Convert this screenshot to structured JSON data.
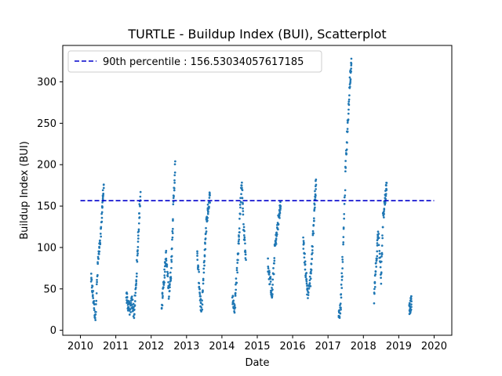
{
  "chart_data": {
    "type": "scatter",
    "title": "TURTLE - Buildup Index (BUI), Scatterplot",
    "xlabel": "Date",
    "ylabel": "Buildup Index (BUI)",
    "xlim": [
      2009.5,
      2020.5
    ],
    "ylim": [
      -6,
      344
    ],
    "x_ticks": [
      "2010",
      "2011",
      "2012",
      "2013",
      "2014",
      "2015",
      "2016",
      "2017",
      "2018",
      "2019",
      "2020"
    ],
    "y_ticks": [
      "0",
      "50",
      "100",
      "150",
      "200",
      "250",
      "300"
    ],
    "grid": false,
    "point_color": "#1f77b4",
    "reference_line": {
      "label": "90th percentile : 156.53034057617185",
      "value": 156.53034057617185,
      "x_start": 2010.0,
      "x_end": 2020.0,
      "color": "#0000cc",
      "style": "dashed"
    },
    "legend": {
      "placement": "top-left",
      "entries": [
        "90th percentile : 156.53034057617185"
      ]
    },
    "seasons": [
      {
        "points": [
          [
            2010.3,
            62
          ],
          [
            2010.36,
            40
          ],
          [
            2010.42,
            15
          ],
          [
            2010.5,
            85
          ],
          [
            2010.56,
            105
          ],
          [
            2010.62,
            150
          ],
          [
            2010.66,
            176
          ]
        ]
      },
      {
        "points": [
          [
            2011.3,
            40
          ],
          [
            2011.35,
            30
          ],
          [
            2011.4,
            25
          ],
          [
            2011.46,
            35
          ],
          [
            2011.52,
            20
          ],
          [
            2011.58,
            60
          ],
          [
            2011.64,
            120
          ],
          [
            2011.7,
            167
          ]
        ]
      },
      {
        "points": [
          [
            2012.3,
            30
          ],
          [
            2012.36,
            60
          ],
          [
            2012.42,
            90
          ],
          [
            2012.5,
            45
          ],
          [
            2012.56,
            70
          ],
          [
            2012.62,
            140
          ],
          [
            2012.68,
            204
          ]
        ]
      },
      {
        "points": [
          [
            2013.3,
            90
          ],
          [
            2013.36,
            55
          ],
          [
            2013.42,
            20
          ],
          [
            2013.5,
            80
          ],
          [
            2013.56,
            130
          ],
          [
            2013.62,
            150
          ],
          [
            2013.66,
            163
          ]
        ]
      },
      {
        "points": [
          [
            2014.3,
            40
          ],
          [
            2014.36,
            25
          ],
          [
            2014.44,
            80
          ],
          [
            2014.5,
            130
          ],
          [
            2014.56,
            180
          ],
          [
            2014.62,
            120
          ],
          [
            2014.68,
            85
          ]
        ]
      },
      {
        "points": [
          [
            2015.3,
            80
          ],
          [
            2015.36,
            60
          ],
          [
            2015.42,
            40
          ],
          [
            2015.5,
            100
          ],
          [
            2015.56,
            120
          ],
          [
            2015.62,
            140
          ],
          [
            2015.66,
            150
          ]
        ]
      },
      {
        "points": [
          [
            2016.3,
            110
          ],
          [
            2016.36,
            75
          ],
          [
            2016.42,
            45
          ],
          [
            2016.5,
            60
          ],
          [
            2016.56,
            100
          ],
          [
            2016.62,
            150
          ],
          [
            2016.66,
            182
          ]
        ]
      },
      {
        "points": [
          [
            2017.3,
            15
          ],
          [
            2017.36,
            30
          ],
          [
            2017.42,
            90
          ],
          [
            2017.5,
            200
          ],
          [
            2017.56,
            250
          ],
          [
            2017.62,
            300
          ],
          [
            2017.66,
            328
          ]
        ]
      },
      {
        "points": [
          [
            2018.3,
            40
          ],
          [
            2018.36,
            80
          ],
          [
            2018.42,
            120
          ],
          [
            2018.5,
            60
          ],
          [
            2018.56,
            140
          ],
          [
            2018.62,
            160
          ],
          [
            2018.66,
            178
          ]
        ]
      },
      {
        "points": [
          [
            2019.3,
            25
          ],
          [
            2019.33,
            30
          ],
          [
            2019.36,
            35
          ]
        ]
      }
    ]
  }
}
